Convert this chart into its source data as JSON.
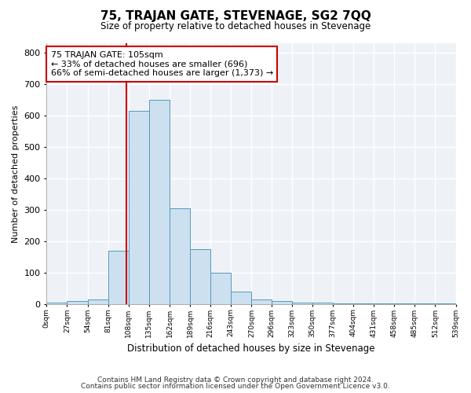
{
  "title": "75, TRAJAN GATE, STEVENAGE, SG2 7QQ",
  "subtitle": "Size of property relative to detached houses in Stevenage",
  "xlabel": "Distribution of detached houses by size in Stevenage",
  "ylabel": "Number of detached properties",
  "bin_edges": [
    0,
    27,
    54,
    81,
    108,
    135,
    162,
    189,
    216,
    243,
    270,
    296,
    323,
    350,
    377,
    404,
    431,
    458,
    485,
    512,
    539
  ],
  "bar_heights": [
    5,
    10,
    15,
    170,
    615,
    650,
    305,
    175,
    100,
    40,
    15,
    10,
    5,
    5,
    3,
    2,
    2,
    1,
    1,
    1
  ],
  "bar_color": "#cce0f0",
  "bar_edge_color": "#5599bb",
  "property_line_x": 105,
  "property_line_color": "#cc0000",
  "annotation_line1": "75 TRAJAN GATE: 105sqm",
  "annotation_line2": "← 33% of detached houses are smaller (696)",
  "annotation_line3": "66% of semi-detached houses are larger (1,373) →",
  "annotation_box_color": "#ffffff",
  "annotation_box_edge_color": "#cc0000",
  "ylim": [
    0,
    830
  ],
  "yticks": [
    0,
    100,
    200,
    300,
    400,
    500,
    600,
    700,
    800
  ],
  "bg_color": "#eef2f7",
  "grid_color": "#ffffff",
  "fig_bg_color": "#ffffff",
  "footer_line1": "Contains HM Land Registry data © Crown copyright and database right 2024.",
  "footer_line2": "Contains public sector information licensed under the Open Government Licence v3.0."
}
